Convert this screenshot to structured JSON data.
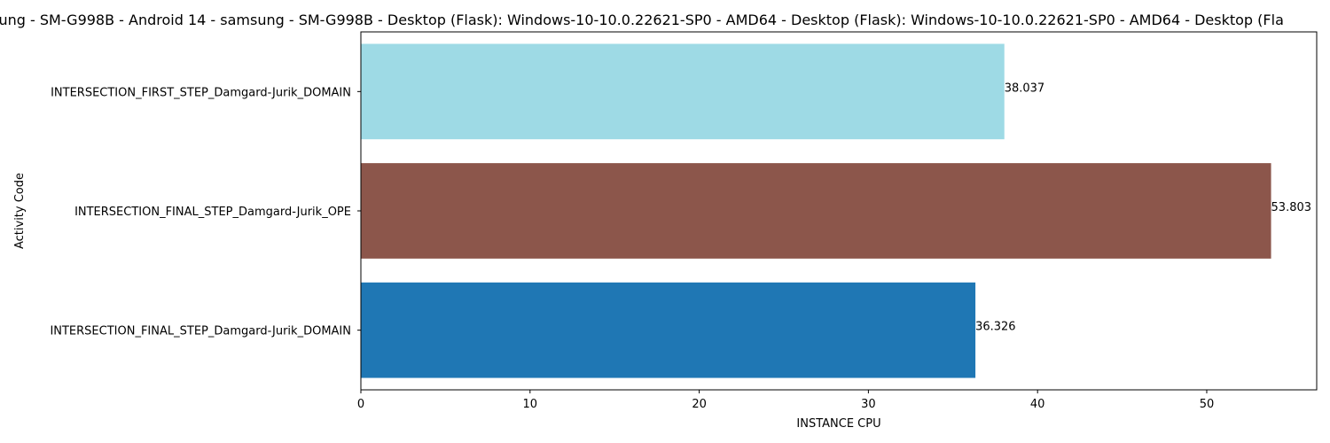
{
  "chart_data": {
    "type": "bar",
    "orientation": "horizontal",
    "title": "sung - SM-G998B - Android 14 - samsung - SM-G998B - Desktop (Flask): Windows-10-10.0.22621-SP0 - AMD64 - Desktop (Flask): Windows-10-10.0.22621-SP0 - AMD64 - Desktop (Fla",
    "xlabel": "INSTANCE CPU",
    "ylabel": "Activity Code",
    "xlim": [
      0,
      56.5
    ],
    "xticks": [
      0,
      10,
      20,
      30,
      40,
      50
    ],
    "grid": false,
    "categories": [
      "INTERSECTION_FIRST_STEP_Damgard-Jurik_DOMAIN",
      "INTERSECTION_FINAL_STEP_Damgard-Jurik_OPE",
      "INTERSECTION_FINAL_STEP_Damgard-Jurik_DOMAIN"
    ],
    "values": [
      38.037,
      53.803,
      36.326
    ],
    "value_labels": [
      "38.037",
      "53.803",
      "36.326"
    ],
    "colors": [
      "#9edae5",
      "#8c564b",
      "#1f77b4"
    ]
  }
}
